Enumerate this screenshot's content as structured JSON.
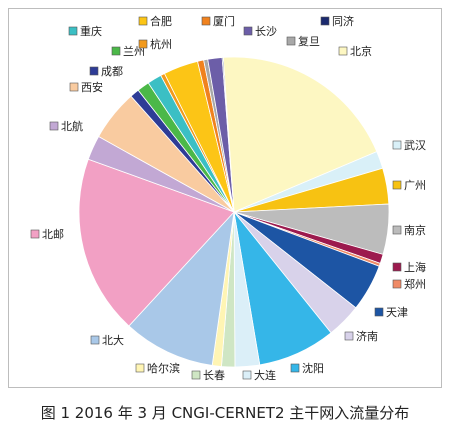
{
  "caption": "图 1 2016 年 3 月 CNGI-CERNET2 主干网入流量分布",
  "chart_data": {
    "type": "pie",
    "title": "",
    "legend": "labels-around",
    "slices": [
      {
        "label": "北京",
        "value": 18.5,
        "color": "#fdf7c2"
      },
      {
        "label": "武汉",
        "value": 1.7,
        "color": "#d9f0f8"
      },
      {
        "label": "广州",
        "value": 3.5,
        "color": "#f7c212"
      },
      {
        "label": "南京",
        "value": 4.9,
        "color": "#bcbcbc"
      },
      {
        "label": "上海",
        "value": 0.9,
        "color": "#9c1a4e"
      },
      {
        "label": "郑州",
        "value": 0.3,
        "color": "#ef8a66"
      },
      {
        "label": "天津",
        "value": 4.6,
        "color": "#1d55a4"
      },
      {
        "label": "济南",
        "value": 3.4,
        "color": "#d8d2ea"
      },
      {
        "label": "沈阳",
        "value": 7.6,
        "color": "#35b6e8"
      },
      {
        "label": "大连",
        "value": 2.4,
        "color": "#dbeff8"
      },
      {
        "label": "长春",
        "value": 1.3,
        "color": "#cfe6c4"
      },
      {
        "label": "哈尔滨",
        "value": 0.9,
        "color": "#fff5b4"
      },
      {
        "label": "北大",
        "value": 9.0,
        "color": "#a9c8e8"
      },
      {
        "label": "北邮",
        "value": 17.5,
        "color": "#f2a0c4"
      },
      {
        "label": "北航",
        "value": 2.4,
        "color": "#c2a8d4"
      },
      {
        "label": "西安",
        "value": 5.0,
        "color": "#f9cba0"
      },
      {
        "label": "成都",
        "value": 0.9,
        "color": "#2e3c96"
      },
      {
        "label": "兰州",
        "value": 1.2,
        "color": "#4bb848"
      },
      {
        "label": "重庆",
        "value": 1.4,
        "color": "#3bbfc4"
      },
      {
        "label": "杭州",
        "value": 0.4,
        "color": "#f29a1d"
      },
      {
        "label": "合肥",
        "value": 3.4,
        "color": "#fcc516"
      },
      {
        "label": "厦门",
        "value": 0.6,
        "color": "#f0821e"
      },
      {
        "label": "复旦",
        "value": 0.4,
        "color": "#a8a8a8"
      },
      {
        "label": "长沙",
        "value": 1.4,
        "color": "#6c5ea8"
      },
      {
        "label": "同济",
        "value": 0.1,
        "color": "#1b2a6e"
      }
    ]
  }
}
